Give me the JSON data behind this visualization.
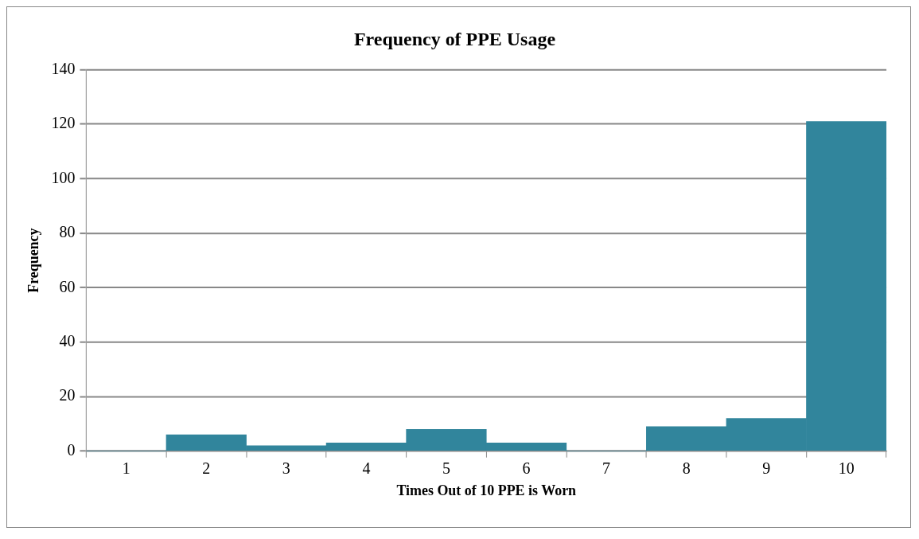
{
  "chart_data": {
    "type": "bar",
    "title": "Frequency of PPE Usage",
    "xlabel": "Times Out of 10 PPE is Worn",
    "ylabel": "Frequency",
    "categories": [
      "1",
      "2",
      "3",
      "4",
      "5",
      "6",
      "7",
      "8",
      "9",
      "10"
    ],
    "values": [
      0,
      6,
      2,
      3,
      8,
      3,
      0,
      9,
      12,
      121
    ],
    "color": "#31859c",
    "ylim": [
      0,
      140
    ],
    "yticks": [
      0,
      20,
      40,
      60,
      80,
      100,
      120,
      140
    ],
    "grid": "y",
    "legend": false
  }
}
